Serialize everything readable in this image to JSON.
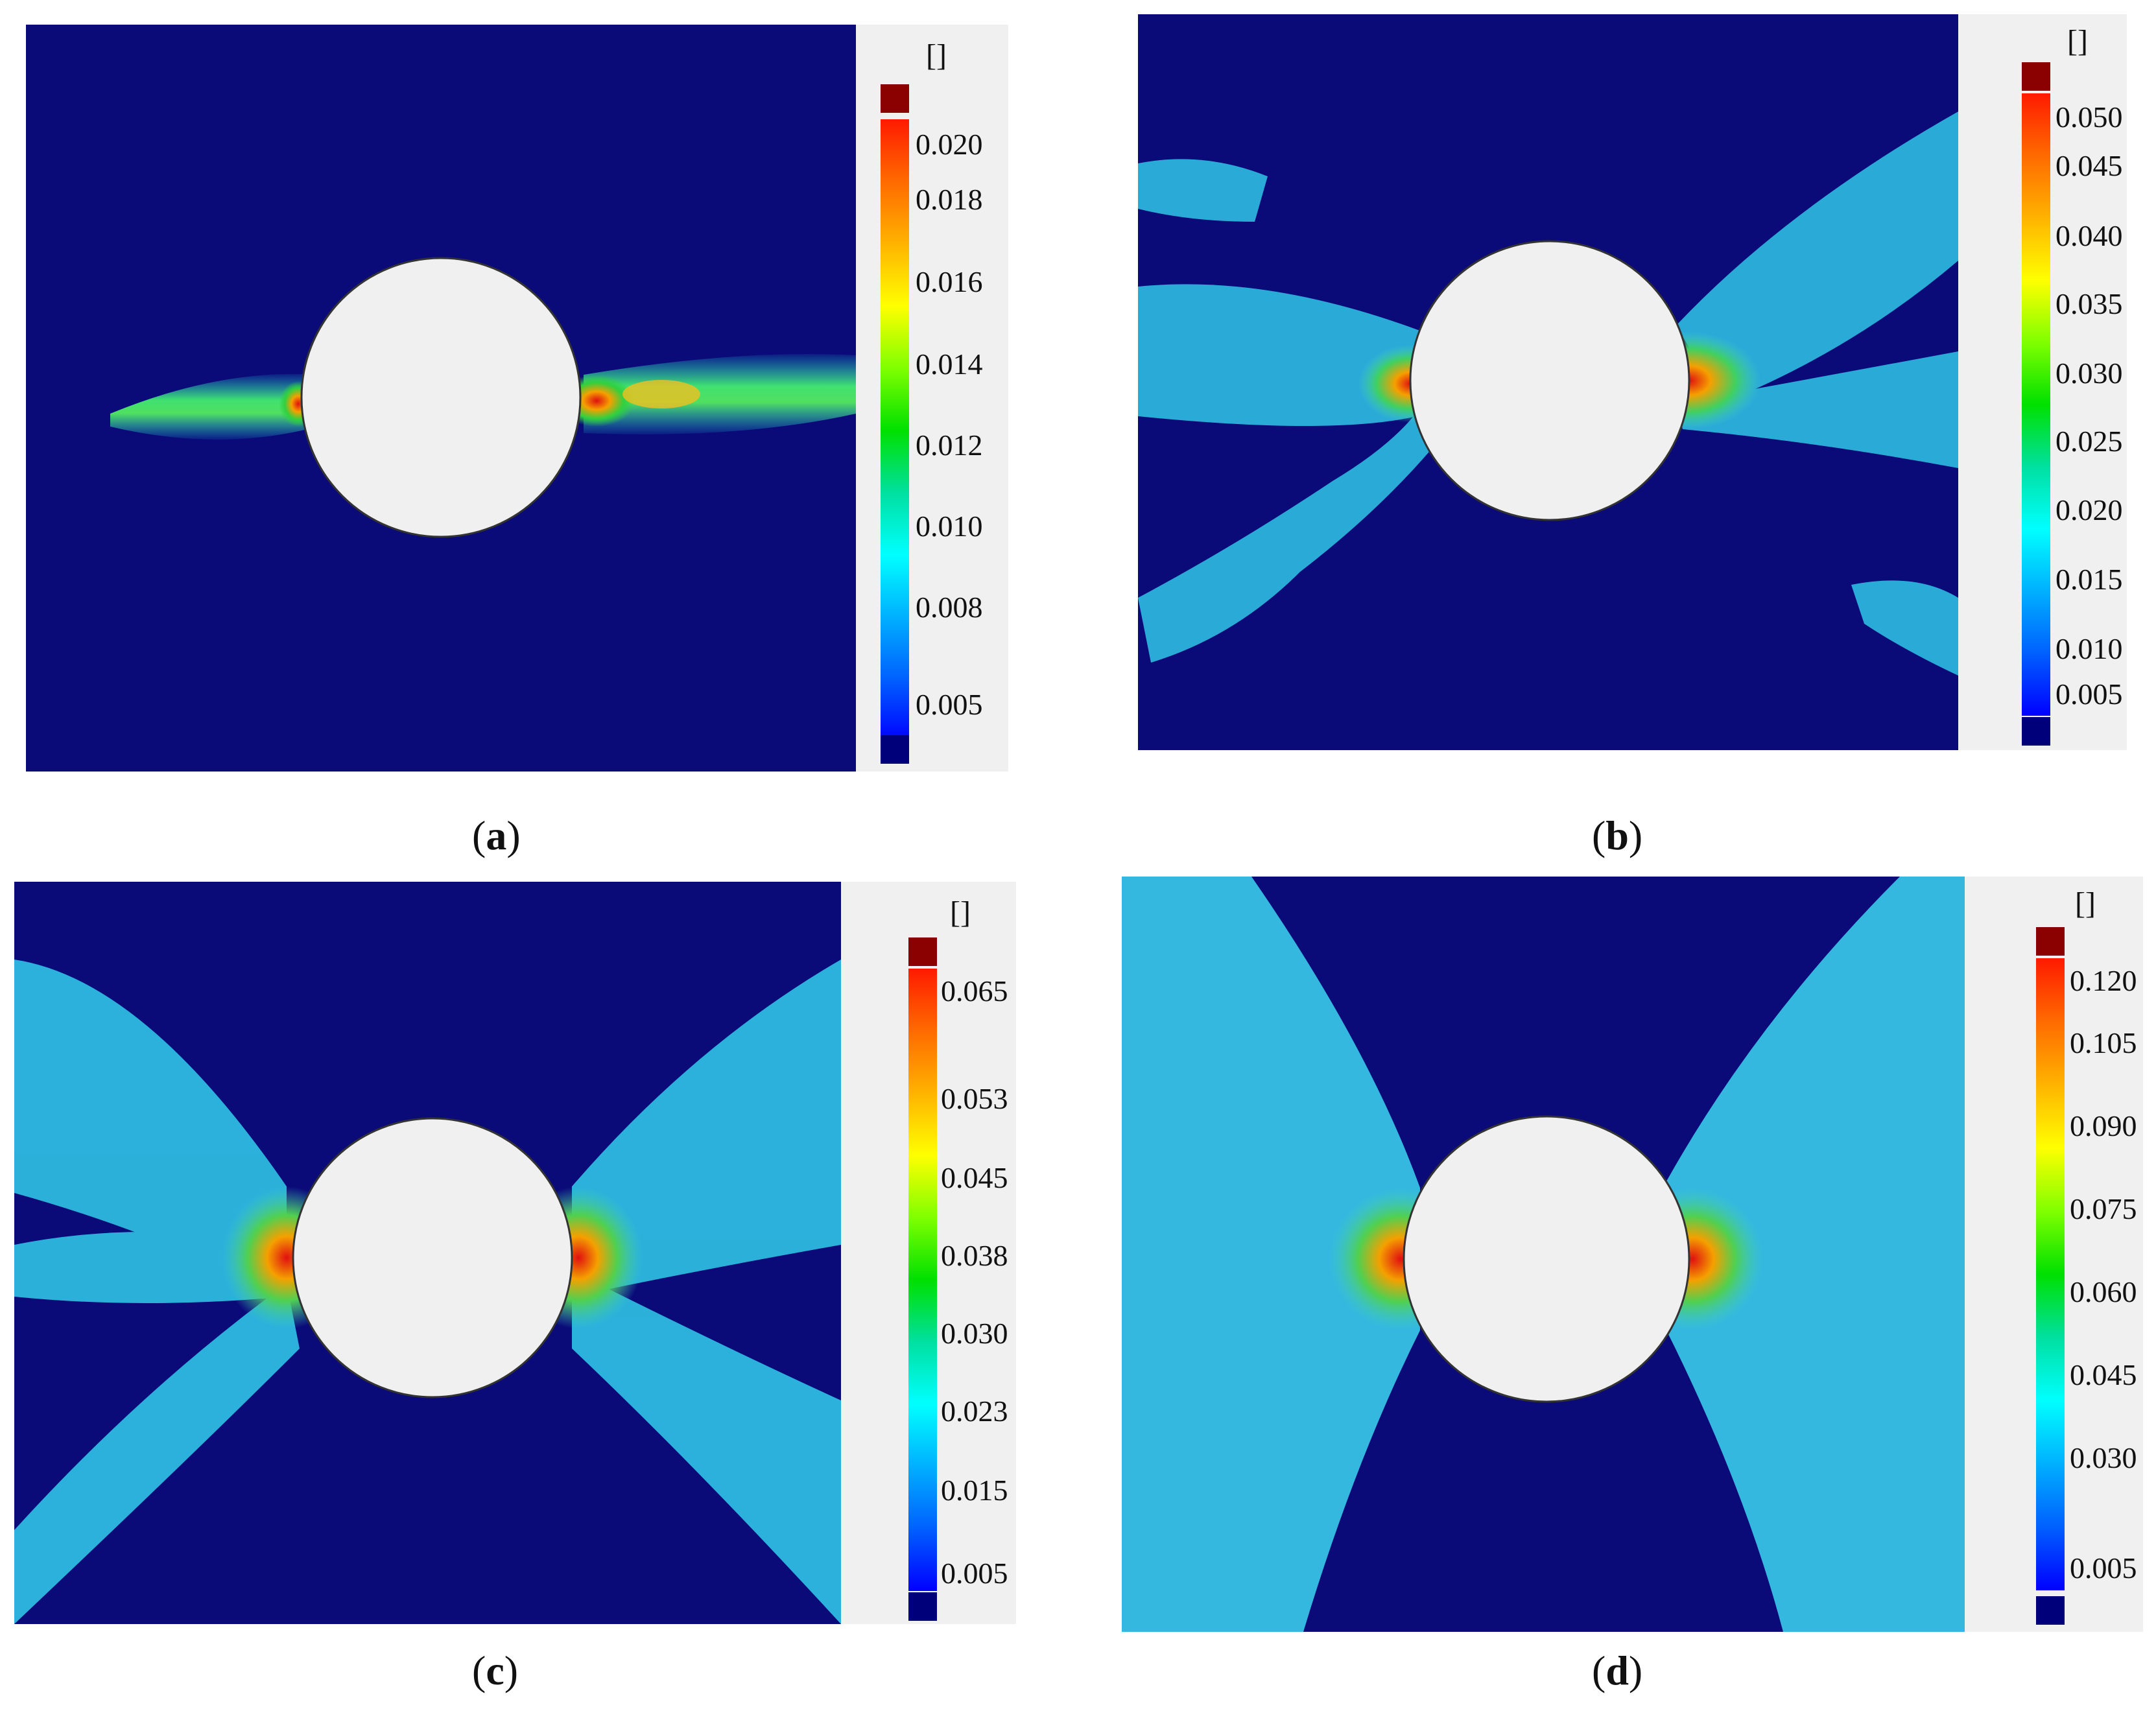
{
  "panels": [
    {
      "caption_letter": "a",
      "unit": "[]",
      "ticks": [
        "0.020",
        "0.018",
        "0.016",
        "0.014",
        "0.012",
        "0.010",
        "0.008",
        "0.005"
      ],
      "pattern": "horizontal-band"
    },
    {
      "caption_letter": "b",
      "unit": "[]",
      "ticks": [
        "0.050",
        "0.045",
        "0.040",
        "0.035",
        "0.030",
        "0.025",
        "0.020",
        "0.015",
        "0.010",
        "0.005"
      ],
      "pattern": "spread-bands"
    },
    {
      "caption_letter": "c",
      "unit": "[]",
      "ticks": [
        "0.065",
        "0.053",
        "0.045",
        "0.038",
        "0.030",
        "0.023",
        "0.015",
        "0.005"
      ],
      "pattern": "x-bands"
    },
    {
      "caption_letter": "d",
      "unit": "[]",
      "ticks": [
        "0.120",
        "0.105",
        "0.090",
        "0.075",
        "0.060",
        "0.045",
        "0.030",
        "0.005"
      ],
      "pattern": "bowtie"
    }
  ],
  "colors": {
    "background_field": "#0a0a78",
    "hole": "#f0f0f0",
    "legend_max": "#8b0000",
    "legend_min": "#00007a"
  }
}
